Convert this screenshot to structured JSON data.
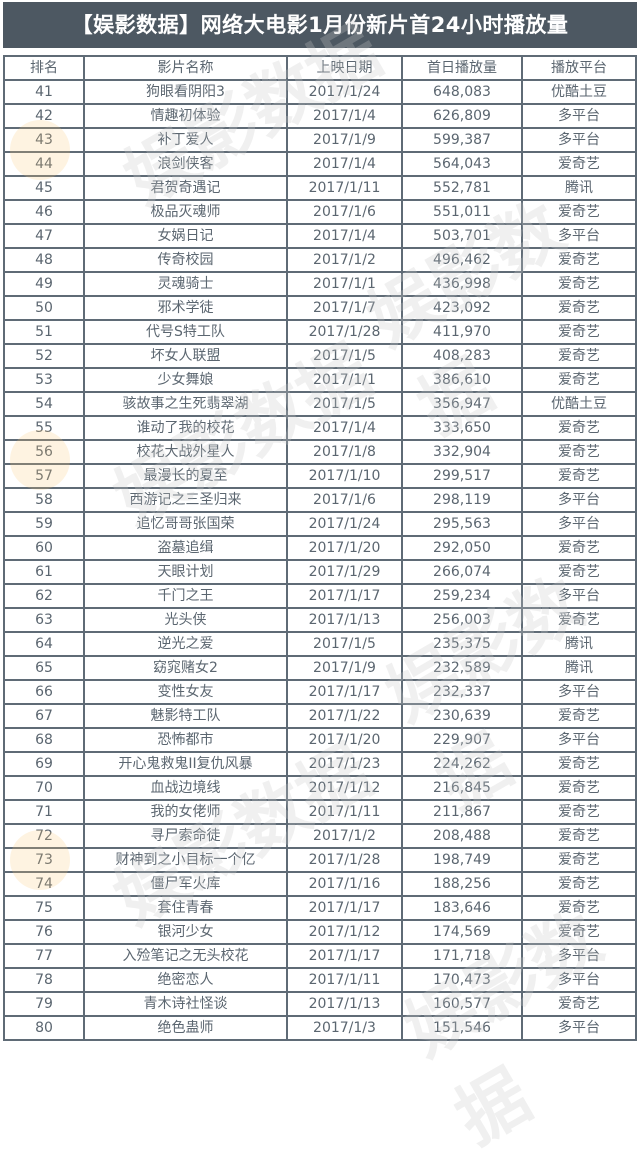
{
  "title": "【娱影数据】网络大电影1月份新片首24小时播放量",
  "watermark": "娱影数据",
  "columns": [
    "排名",
    "影片名称",
    "上映日期",
    "首日播放量",
    "播放平台"
  ],
  "rows": [
    [
      "41",
      "狗眼看阴阳3",
      "2017/1/24",
      "648,083",
      "优酷土豆"
    ],
    [
      "42",
      "情趣初体验",
      "2017/1/4",
      "626,809",
      "多平台"
    ],
    [
      "43",
      "补丁爱人",
      "2017/1/9",
      "599,387",
      "多平台"
    ],
    [
      "44",
      "浪剑侠客",
      "2017/1/4",
      "564,043",
      "爱奇艺"
    ],
    [
      "45",
      "君贺奇遇记",
      "2017/1/11",
      "552,781",
      "腾讯"
    ],
    [
      "46",
      "极品灭魂师",
      "2017/1/6",
      "551,011",
      "爱奇艺"
    ],
    [
      "47",
      "女娲日记",
      "2017/1/4",
      "503,701",
      "多平台"
    ],
    [
      "48",
      "传奇校园",
      "2017/1/2",
      "496,462",
      "爱奇艺"
    ],
    [
      "49",
      "灵魂骑士",
      "2017/1/1",
      "436,998",
      "爱奇艺"
    ],
    [
      "50",
      "邪术学徒",
      "2017/1/7",
      "423,092",
      "爱奇艺"
    ],
    [
      "51",
      "代号S特工队",
      "2017/1/28",
      "411,970",
      "爱奇艺"
    ],
    [
      "52",
      "坏女人联盟",
      "2017/1/5",
      "408,283",
      "爱奇艺"
    ],
    [
      "53",
      "少女舞娘",
      "2017/1/1",
      "386,610",
      "爱奇艺"
    ],
    [
      "54",
      "骇故事之生死翡翠湖",
      "2017/1/5",
      "356,947",
      "优酷土豆"
    ],
    [
      "55",
      "谁动了我的校花",
      "2017/1/4",
      "333,650",
      "爱奇艺"
    ],
    [
      "56",
      "校花大战外星人",
      "2017/1/8",
      "332,904",
      "爱奇艺"
    ],
    [
      "57",
      "最漫长的夏至",
      "2017/1/10",
      "299,517",
      "爱奇艺"
    ],
    [
      "58",
      "西游记之三圣归来",
      "2017/1/6",
      "298,119",
      "多平台"
    ],
    [
      "59",
      "追忆哥哥张国荣",
      "2017/1/24",
      "295,563",
      "多平台"
    ],
    [
      "60",
      "盗墓追缉",
      "2017/1/20",
      "292,050",
      "爱奇艺"
    ],
    [
      "61",
      "天眼计划",
      "2017/1/29",
      "266,074",
      "爱奇艺"
    ],
    [
      "62",
      "千门之王",
      "2017/1/17",
      "259,234",
      "多平台"
    ],
    [
      "63",
      "光头侠",
      "2017/1/13",
      "256,003",
      "爱奇艺"
    ],
    [
      "64",
      "逆光之爱",
      "2017/1/5",
      "235,375",
      "腾讯"
    ],
    [
      "65",
      "窈窕赌女2",
      "2017/1/9",
      "232,589",
      "腾讯"
    ],
    [
      "66",
      "变性女友",
      "2017/1/17",
      "232,337",
      "多平台"
    ],
    [
      "67",
      "魅影特工队",
      "2017/1/22",
      "230,639",
      "爱奇艺"
    ],
    [
      "68",
      "恐怖都市",
      "2017/1/20",
      "229,907",
      "多平台"
    ],
    [
      "69",
      "开心鬼救鬼II复仇风暴",
      "2017/1/23",
      "224,262",
      "爱奇艺"
    ],
    [
      "70",
      "血战边境线",
      "2017/1/12",
      "216,845",
      "爱奇艺"
    ],
    [
      "71",
      "我的女佬师",
      "2017/1/11",
      "211,867",
      "爱奇艺"
    ],
    [
      "72",
      "寻尸索命徒",
      "2017/1/2",
      "208,488",
      "爱奇艺"
    ],
    [
      "73",
      "财神到之小目标一个亿",
      "2017/1/28",
      "198,749",
      "爱奇艺"
    ],
    [
      "74",
      "僵尸军火库",
      "2017/1/16",
      "188,256",
      "爱奇艺"
    ],
    [
      "75",
      "套住青春",
      "2017/1/17",
      "183,646",
      "爱奇艺"
    ],
    [
      "76",
      "银河少女",
      "2017/1/12",
      "174,569",
      "爱奇艺"
    ],
    [
      "77",
      "入殓笔记之无头校花",
      "2017/1/17",
      "171,718",
      "多平台"
    ],
    [
      "78",
      "绝密恋人",
      "2017/1/11",
      "170,473",
      "多平台"
    ],
    [
      "79",
      "青木诗社怪谈",
      "2017/1/13",
      "160,577",
      "爱奇艺"
    ],
    [
      "80",
      "绝色蛊师",
      "2017/1/3",
      "151,546",
      "多平台"
    ]
  ]
}
